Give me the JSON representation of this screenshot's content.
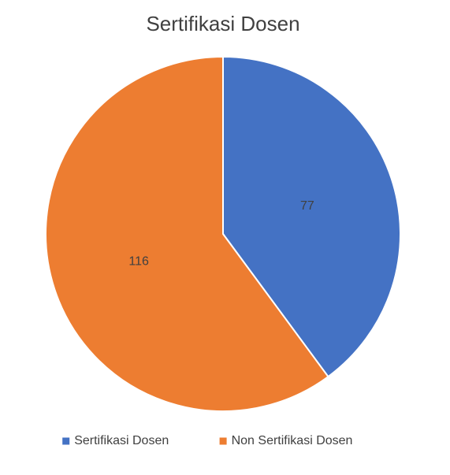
{
  "chart_data": {
    "type": "pie",
    "title": "Sertifikasi Dosen",
    "categories": [
      "Sertifikasi Dosen",
      "Non Sertifikasi Dosen"
    ],
    "values": [
      77,
      116
    ],
    "colors": [
      "#4472c4",
      "#ed7d31"
    ],
    "legend": "bottom"
  }
}
